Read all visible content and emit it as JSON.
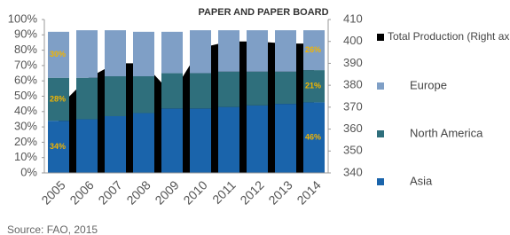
{
  "chart_data": {
    "type": "bar",
    "stacked": true,
    "title": "PAPER AND PAPER BOARD",
    "source": "Source: FAO, 2015",
    "categories": [
      "2005",
      "2006",
      "2007",
      "2008",
      "2009",
      "2010",
      "2011",
      "2012",
      "2013",
      "2014"
    ],
    "series": [
      {
        "name": "Asia",
        "color": "#1a64ab",
        "values": [
          34,
          35,
          37,
          39,
          42,
          42,
          43,
          44,
          45,
          46
        ],
        "value_labels": [
          "34%",
          null,
          null,
          null,
          null,
          null,
          null,
          null,
          null,
          "46%"
        ]
      },
      {
        "name": "North America",
        "color": "#2f6f7c",
        "values": [
          28,
          27,
          26,
          24,
          23,
          23,
          23,
          22,
          21,
          21
        ],
        "value_labels": [
          "28%",
          null,
          null,
          null,
          null,
          null,
          null,
          null,
          null,
          "21%"
        ]
      },
      {
        "name": "Europe",
        "color": "#7f9fc6",
        "values": [
          30,
          31,
          30,
          29,
          27,
          28,
          27,
          27,
          27,
          26
        ],
        "value_labels": [
          "30%",
          null,
          null,
          null,
          null,
          null,
          null,
          null,
          null,
          "26%"
        ]
      },
      {
        "name": "Total Production (Right ax",
        "color": "#000000",
        "type": "area",
        "axis": "y2",
        "values": [
          370,
          383,
          390,
          390,
          376,
          397,
          400,
          400,
          399,
          399
        ]
      }
    ],
    "ylim": [
      0,
      100
    ],
    "yticks": [
      {
        "value": 0,
        "label": "0%"
      },
      {
        "value": 10,
        "label": "10%"
      },
      {
        "value": 20,
        "label": "20%"
      },
      {
        "value": 30,
        "label": "30%"
      },
      {
        "value": 40,
        "label": "40%"
      },
      {
        "value": 50,
        "label": "50%"
      },
      {
        "value": 60,
        "label": "60%"
      },
      {
        "value": 70,
        "label": "70%"
      },
      {
        "value": 80,
        "label": "80%"
      },
      {
        "value": 90,
        "label": "90%"
      },
      {
        "value": 100,
        "label": "100%"
      }
    ],
    "y2lim": [
      340,
      410
    ],
    "y2ticks": [
      340,
      350,
      360,
      370,
      380,
      390,
      400,
      410
    ]
  }
}
